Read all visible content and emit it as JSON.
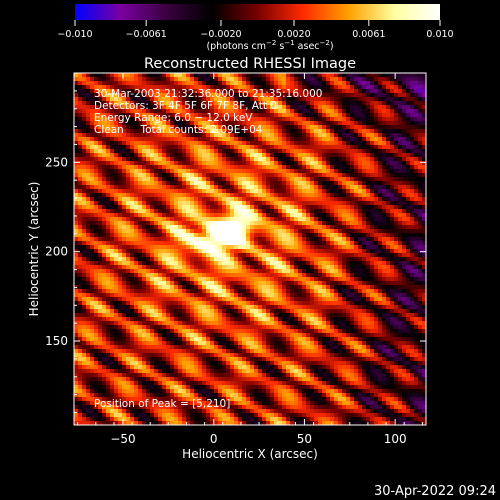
{
  "chart_data": {
    "type": "heatmap",
    "title": "Reconstructed RHESSI Image",
    "xlabel": "Heliocentric X (arcsec)",
    "ylabel": "Heliocentric Y (arcsec)",
    "xlim": [
      -77,
      117
    ],
    "ylim": [
      103,
      300
    ],
    "x_ticks": [
      -50,
      0,
      50,
      100
    ],
    "x_tick_labels": [
      "−50",
      "0",
      "50",
      "100"
    ],
    "y_ticks": [
      150,
      200,
      250
    ],
    "y_tick_labels": [
      "150",
      "200",
      "250"
    ],
    "colorbar": {
      "min": -0.01,
      "max": 0.01,
      "ticks": [
        -0.01,
        -0.0061,
        -0.002,
        0.002,
        0.0061,
        0.01
      ],
      "tick_labels": [
        "−0.010",
        "−0.0061",
        "−0.0020",
        "0.0020",
        "0.0061",
        "0.010"
      ],
      "unit_parts": [
        "(photons cm",
        "−2",
        " s",
        "−1",
        " asec",
        "−2",
        ")"
      ],
      "colors": [
        "#0000ff",
        "#7a00a0",
        "#3a0040",
        "#000000",
        "#7a0000",
        "#ff2a00",
        "#ffa000",
        "#ffffa0",
        "#ffffff"
      ]
    },
    "info_lines": [
      "30-Mar-2003 21:32:36.000 to 21:35:16.000",
      "Detectors: 3F 4F 5F 6F 7F 8F, Att 0",
      "Energy Range: 6.0 − 12.0 keV",
      "Clean     Total counts: 2.09E+04"
    ],
    "peak_label": "Position of Peak = [5,210]",
    "peak": {
      "x": 5,
      "y": 210
    }
  },
  "timestamp": "30-Apr-2022 09:24"
}
